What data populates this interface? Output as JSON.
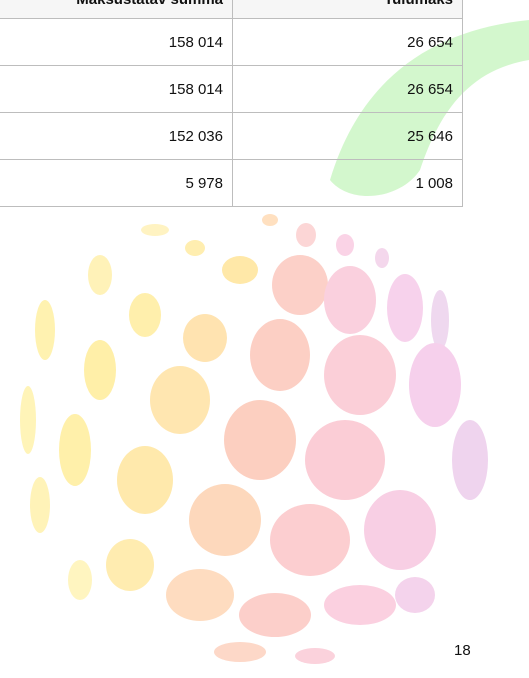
{
  "table": {
    "header": [
      "Maksustatav summa",
      "Tulumaks"
    ],
    "rows": [
      [
        "158 014",
        "26 654"
      ],
      [
        "158 014",
        "26 654"
      ],
      [
        "152 036",
        "25 646"
      ],
      [
        "5 978",
        "1 008"
      ]
    ]
  },
  "page_number": "18"
}
